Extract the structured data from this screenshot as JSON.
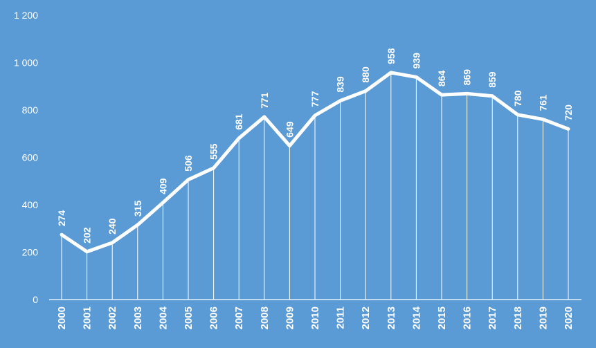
{
  "chart_data": {
    "type": "line",
    "title": "",
    "xlabel": "",
    "ylabel": "",
    "x": [
      "2000",
      "2001",
      "2002",
      "2003",
      "2004",
      "2005",
      "2006",
      "2007",
      "2008",
      "2009",
      "2010",
      "2011",
      "2012",
      "2013",
      "2014",
      "2015",
      "2016",
      "2017",
      "2018",
      "2019",
      "2020"
    ],
    "series": [
      {
        "values": [
          274,
          202,
          240,
          315,
          409,
          506,
          555,
          681,
          771,
          649,
          777,
          839,
          880,
          958,
          939,
          864,
          869,
          859,
          780,
          761,
          720
        ]
      }
    ],
    "data_labels": [
      "274",
      "202",
      "240",
      "315",
      "409",
      "506",
      "555",
      "681",
      "771",
      "649",
      "777",
      "839",
      "880",
      "958",
      "939",
      "864",
      "869",
      "859",
      "780",
      "761",
      "720"
    ],
    "ylim": [
      0,
      1200
    ],
    "yticks": [
      0,
      200,
      400,
      600,
      800,
      1000,
      1200
    ],
    "ytick_labels": [
      "0",
      "200",
      "400",
      "600",
      "800",
      "1 000",
      "1 200"
    ],
    "grid": false,
    "drop_lines": true,
    "legend": "none",
    "colors": {
      "background": "#5b9bd5",
      "line": "#ffffff",
      "text": "#ffffff"
    }
  }
}
